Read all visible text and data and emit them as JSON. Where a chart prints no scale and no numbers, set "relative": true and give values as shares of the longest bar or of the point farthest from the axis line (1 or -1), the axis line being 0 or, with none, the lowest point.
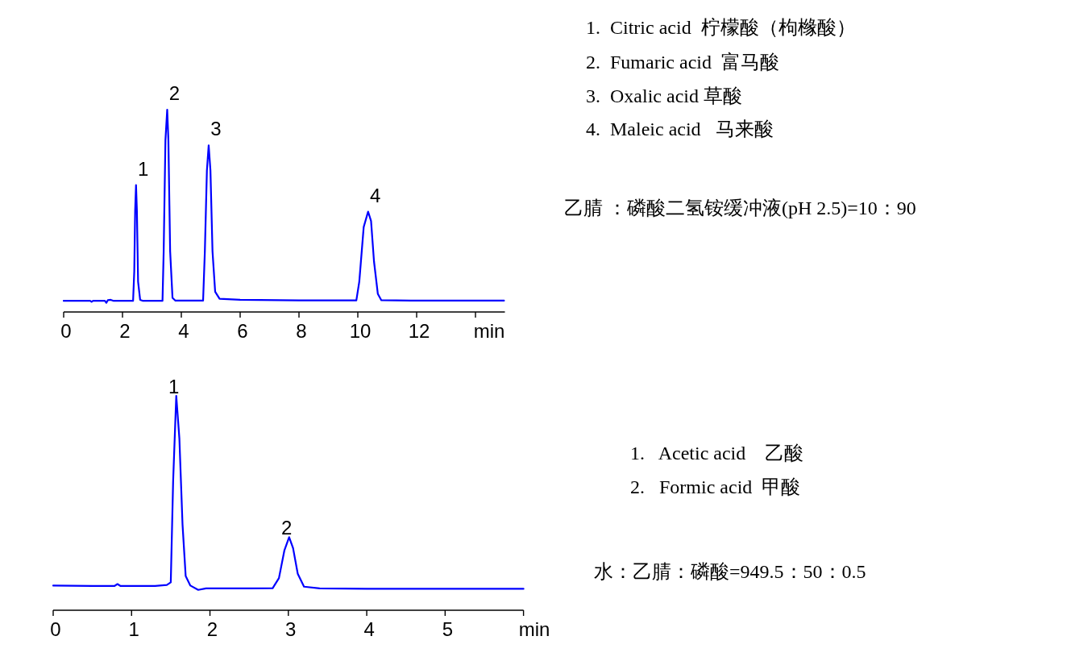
{
  "chart_data": [
    {
      "type": "line",
      "relative": true,
      "color": "#0000ff",
      "xlim": [
        0,
        15
      ],
      "xticks": [
        0,
        2,
        4,
        6,
        8,
        10,
        12,
        {
          "value": 14,
          "label": null
        }
      ],
      "xlabel": "min",
      "x": [
        0,
        0.9,
        0.95,
        1.0,
        1.4,
        1.45,
        1.5,
        1.6,
        1.7,
        2.36,
        2.4,
        2.43,
        2.46,
        2.49,
        2.53,
        2.6,
        2.7,
        3.36,
        3.4,
        3.46,
        3.52,
        3.56,
        3.62,
        3.7,
        3.8,
        4.74,
        4.8,
        4.87,
        4.93,
        4.99,
        5.06,
        5.15,
        5.3,
        6,
        8,
        9.95,
        10.05,
        10.2,
        10.35,
        10.45,
        10.55,
        10.68,
        10.8,
        12,
        14.97
      ],
      "values": [
        0.055,
        0.055,
        0.05,
        0.055,
        0.055,
        0.045,
        0.058,
        0.06,
        0.055,
        0.055,
        0.2,
        0.5,
        0.627,
        0.5,
        0.15,
        0.06,
        0.055,
        0.055,
        0.3,
        0.85,
        1,
        0.85,
        0.3,
        0.07,
        0.056,
        0.056,
        0.3,
        0.7,
        0.823,
        0.7,
        0.3,
        0.1,
        0.065,
        0.06,
        0.057,
        0.057,
        0.15,
        0.42,
        0.496,
        0.45,
        0.25,
        0.09,
        0.058,
        0.056,
        0.056
      ],
      "annotations": [
        {
          "text": "1",
          "x": 2.46,
          "y": 0.627
        },
        {
          "text": "2",
          "x": 3.52,
          "y": 1
        },
        {
          "text": "3",
          "x": 4.93,
          "y": 0.823
        },
        {
          "text": "4",
          "x": 10.35,
          "y": 0.496
        },
        "1.  Citric acid  柠檬酸（枸橼酸）",
        "2.  Fumaric acid  富马酸",
        "3.  Oxalic acid 草酸",
        "4.  Maleic acid   马来酸",
        "乙腈 ：磷酸二氢铵缓冲液(pH 2.5)=10：90"
      ]
    },
    {
      "type": "line",
      "relative": true,
      "color": "#0000ff",
      "xlim": [
        0,
        6
      ],
      "xticks": [
        0,
        1,
        2,
        3,
        4,
        5,
        {
          "value": 6,
          "label": null
        }
      ],
      "xlabel": "min",
      "x": [
        0,
        0.5,
        0.78,
        0.82,
        0.86,
        1.3,
        1.45,
        1.5,
        1.53,
        1.57,
        1.61,
        1.65,
        1.69,
        1.75,
        1.85,
        1.95,
        2.5,
        2.8,
        2.88,
        2.95,
        3.01,
        3.06,
        3.12,
        3.2,
        3.4,
        4,
        5,
        6
      ],
      "values": [
        0.115,
        0.113,
        0.113,
        0.122,
        0.113,
        0.113,
        0.118,
        0.13,
        0.6,
        1,
        0.8,
        0.4,
        0.16,
        0.115,
        0.095,
        0.102,
        0.102,
        0.103,
        0.15,
        0.28,
        0.341,
        0.29,
        0.17,
        0.11,
        0.102,
        0.1,
        0.1,
        0.1
      ],
      "annotations": [
        {
          "text": "1",
          "x": 1.57,
          "y": 1
        },
        {
          "text": "2",
          "x": 3.01,
          "y": 0.341
        },
        "1.   Acetic acid    乙酸",
        "2.   Formic acid  甲酸",
        "水：乙腈：磷酸=949.5：50：0.5"
      ]
    }
  ]
}
